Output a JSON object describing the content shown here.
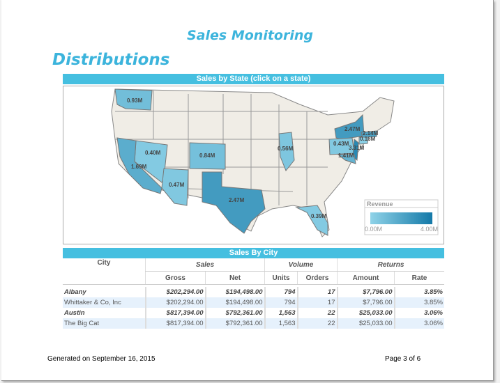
{
  "header": {
    "title": "Sales Monitoring",
    "section": "Distributions"
  },
  "map": {
    "title": "Sales by State (click on a state)",
    "legend": {
      "title": "Revenue",
      "min": "0.00M",
      "max": "4.00M",
      "color_low": "#8fd3e8",
      "color_high": "#1479a8"
    },
    "states": [
      {
        "name": "WA",
        "value": 0.93,
        "label": "0.93M"
      },
      {
        "name": "NV",
        "value": 0.4,
        "label": "0.40M"
      },
      {
        "name": "CA",
        "value": 1.69,
        "label": "1.69M"
      },
      {
        "name": "AZ",
        "value": 0.47,
        "label": "0.47M"
      },
      {
        "name": "CO",
        "value": 0.84,
        "label": "0.84M"
      },
      {
        "name": "TX",
        "value": 2.47,
        "label": "2.47M"
      },
      {
        "name": "IL",
        "value": 0.56,
        "label": "0.56M"
      },
      {
        "name": "FL",
        "value": 0.39,
        "label": "0.39M"
      },
      {
        "name": "NY",
        "value": 2.47,
        "label": "2.47M"
      },
      {
        "name": "PA",
        "value": 0.43,
        "label": "0.43M"
      },
      {
        "name": "MA",
        "value": 2.14,
        "label": "2.14M"
      },
      {
        "name": "CT",
        "value": 0.16,
        "label": "0.16M"
      },
      {
        "name": "NJ",
        "value": 3.31,
        "label": "3.31M"
      },
      {
        "name": "MD",
        "value": 1.41,
        "label": "1.41M"
      }
    ]
  },
  "table": {
    "title": "Sales By City",
    "groups": {
      "city": "City",
      "sales": "Sales",
      "volume": "Volume",
      "returns": "Returns"
    },
    "columns": [
      "Gross",
      "Net",
      "Units",
      "Orders",
      "Amount",
      "Rate"
    ],
    "rows": [
      {
        "type": "grp",
        "cells": [
          "Albany",
          "$202,294.00",
          "$194,498.00",
          "794",
          "17",
          "$7,796.00",
          "3.85%"
        ]
      },
      {
        "type": "det",
        "cells": [
          "Whittaker & Co, Inc",
          "$202,294.00",
          "$194,498.00",
          "794",
          "17",
          "$7,796.00",
          "3.85%"
        ]
      },
      {
        "type": "grp",
        "cells": [
          "Austin",
          "$817,394.00",
          "$792,361.00",
          "1,563",
          "22",
          "$25,033.00",
          "3.06%"
        ]
      },
      {
        "type": "det",
        "cells": [
          "The Big Cat",
          "$817,394.00",
          "$792,361.00",
          "1,563",
          "22",
          "$25,033.00",
          "3.06%"
        ]
      }
    ]
  },
  "footer": {
    "generated": "Generated on  September 16, 2015",
    "page": "Page 3 of 6"
  }
}
